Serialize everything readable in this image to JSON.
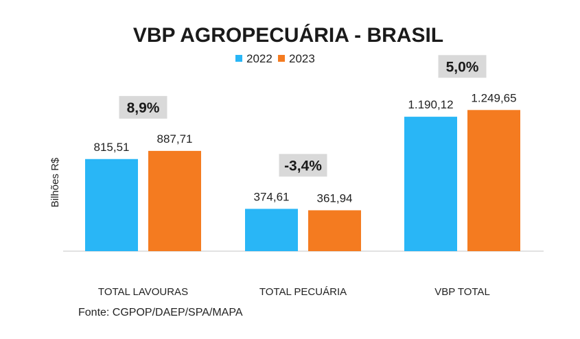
{
  "chart_data": {
    "type": "bar",
    "title": "VBP AGROPECUÁRIA - BRASIL",
    "ylabel": "Bilhões R$",
    "xlabel": "",
    "categories": [
      "TOTAL LAVOURAS",
      "TOTAL PECUÁRIA",
      "VBP TOTAL"
    ],
    "series": [
      {
        "name": "2022",
        "color": "#29B6F6",
        "values": [
          815.51,
          374.61,
          1190.12
        ],
        "labels": [
          "815,51",
          "374,61",
          "1.190,12"
        ]
      },
      {
        "name": "2023",
        "color": "#F47B20",
        "values": [
          887.71,
          361.94,
          1249.65
        ],
        "labels": [
          "887,71",
          "361,94",
          "1.249,65"
        ]
      }
    ],
    "changes": [
      "8,9%",
      "-3,4%",
      "5,0%"
    ],
    "ylim": [
      0,
      1400
    ],
    "grid": false,
    "legend": "top-center",
    "source": "Fonte: CGPOP/DAEP/SPA/MAPA"
  }
}
